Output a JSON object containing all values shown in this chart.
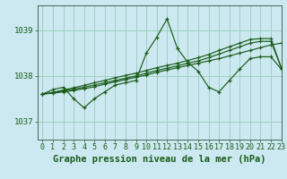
{
  "title": "Graphe pression niveau de la mer (hPa)",
  "background_color": "#cce8f0",
  "grid_color": "#99ccbb",
  "line_color": "#1a5c1a",
  "xlim": [
    -0.5,
    23
  ],
  "ylim": [
    1036.6,
    1039.55
  ],
  "yticks": [
    1037,
    1038,
    1039
  ],
  "xticks": [
    0,
    1,
    2,
    3,
    4,
    5,
    6,
    7,
    8,
    9,
    10,
    11,
    12,
    13,
    14,
    15,
    16,
    17,
    18,
    19,
    20,
    21,
    22,
    23
  ],
  "hours": [
    0,
    1,
    2,
    3,
    4,
    5,
    6,
    7,
    8,
    9,
    10,
    11,
    12,
    13,
    14,
    15,
    16,
    17,
    18,
    19,
    20,
    21,
    22,
    23
  ],
  "pressure_main": [
    1037.6,
    1037.7,
    1037.75,
    1037.5,
    1037.3,
    1037.5,
    1037.65,
    1037.8,
    1037.85,
    1037.9,
    1038.5,
    1038.85,
    1039.25,
    1038.6,
    1038.3,
    1038.1,
    1037.75,
    1037.65,
    1037.9,
    1038.15,
    1038.38,
    1038.42,
    1038.42,
    1038.15
  ],
  "pressure_line2": [
    1037.6,
    1037.62,
    1037.65,
    1037.68,
    1037.72,
    1037.76,
    1037.82,
    1037.87,
    1037.92,
    1037.97,
    1038.02,
    1038.08,
    1038.13,
    1038.18,
    1038.23,
    1038.28,
    1038.33,
    1038.38,
    1038.44,
    1038.5,
    1038.56,
    1038.62,
    1038.68,
    1038.72
  ],
  "pressure_line3": [
    1037.6,
    1037.63,
    1037.67,
    1037.71,
    1037.75,
    1037.8,
    1037.85,
    1037.9,
    1037.95,
    1038.0,
    1038.06,
    1038.12,
    1038.17,
    1038.22,
    1038.28,
    1038.33,
    1038.4,
    1038.48,
    1038.56,
    1038.64,
    1038.72,
    1038.76,
    1038.76,
    1038.18
  ],
  "pressure_line4": [
    1037.6,
    1037.64,
    1037.69,
    1037.74,
    1037.79,
    1037.85,
    1037.9,
    1037.96,
    1038.01,
    1038.06,
    1038.12,
    1038.18,
    1038.23,
    1038.28,
    1038.34,
    1038.4,
    1038.47,
    1038.56,
    1038.64,
    1038.72,
    1038.8,
    1038.82,
    1038.82,
    1038.18
  ],
  "title_fontsize": 7.5,
  "tick_fontsize": 6
}
